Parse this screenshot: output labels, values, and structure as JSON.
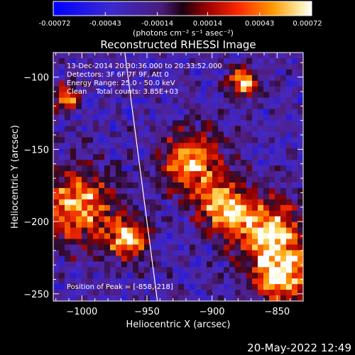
{
  "colorbar": {
    "ticks": [
      "-0.00072",
      "-0.00043",
      "-0.00014",
      "0.00014",
      "0.00043",
      "0.00072"
    ],
    "unit_label": "(photons cm⁻² s⁻¹ asec⁻²)"
  },
  "title": "Reconstructed RHESSI Image",
  "info": {
    "time_range": "13-Dec-2014 20:30:36.000 to 20:33:52.000",
    "detectors": "Detectors: 3F 6F 7F 9F, Att 0",
    "energy": "Energy Range: 25.0 - 50.0 keV",
    "clean": "Clean    Total counts: 3.85E+03",
    "peak": "Position of Peak = [-858,-218]"
  },
  "timestamp": "20-May-2022 12:49",
  "chart_data": {
    "type": "heatmap",
    "title": "Reconstructed RHESSI Image",
    "xlabel": "Heliocentric X (arcsec)",
    "ylabel": "Heliocentric Y (arcsec)",
    "xlim": [
      -1022,
      -830
    ],
    "ylim": [
      -255,
      -83
    ],
    "x_ticks": [
      -1000,
      -950,
      -900,
      -850
    ],
    "y_ticks": [
      -100,
      -150,
      -200,
      -250
    ],
    "x_tick_labels": [
      "−1000",
      "−950",
      "−900",
      "−850"
    ],
    "y_tick_labels": [
      "−100",
      "−150",
      "−200",
      "−250"
    ],
    "color_range": [
      -0.00072,
      0.00072
    ],
    "colormap": "blue-purple-red-yellow-white",
    "peak_position": [
      -858,
      -218
    ],
    "limb_line": [
      [
        -967,
        -83
      ],
      [
        -942,
        -255
      ]
    ]
  },
  "colors": {
    "background": "#000000",
    "foreground": "#ffffff",
    "colormap_stops": [
      "#0000ff",
      "#3320c8",
      "#5a2a9a",
      "#2a1030",
      "#b40000",
      "#ff3000",
      "#ff9000",
      "#ffe060",
      "#ffffff"
    ]
  }
}
